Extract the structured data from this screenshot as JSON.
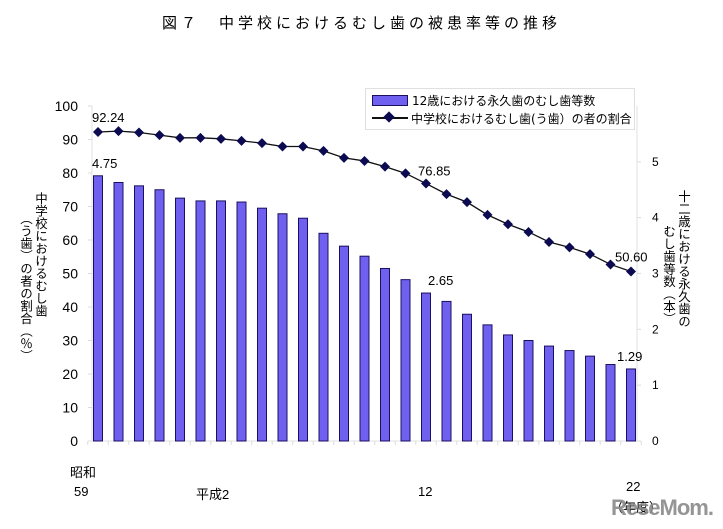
{
  "chart_data": {
    "type": "bar",
    "title": "図７　中学校におけるむし歯の被患率等の推移",
    "categories": [
      "1984",
      "1985",
      "1986",
      "1987",
      "1988",
      "1989",
      "1990",
      "1991",
      "1992",
      "1993",
      "1994",
      "1995",
      "1996",
      "1997",
      "1998",
      "1999",
      "2000",
      "2001",
      "2002",
      "2003",
      "2004",
      "2005",
      "2006",
      "2007",
      "2008",
      "2009",
      "2010"
    ],
    "series": [
      {
        "name": "12歳における永久歯のむし歯等数",
        "type": "bar",
        "axis": "right",
        "color": "#7060f0",
        "values": [
          4.75,
          4.63,
          4.57,
          4.5,
          4.35,
          4.3,
          4.3,
          4.28,
          4.17,
          4.07,
          3.99,
          3.72,
          3.49,
          3.31,
          3.09,
          2.89,
          2.65,
          2.5,
          2.27,
          2.08,
          1.9,
          1.8,
          1.7,
          1.62,
          1.52,
          1.37,
          1.29
        ]
      },
      {
        "name": "中学校におけるむし歯(う歯）の者の割合",
        "type": "line",
        "axis": "left",
        "color": "#0c0a50",
        "values": [
          92.24,
          92.5,
          92.1,
          91.3,
          90.5,
          90.5,
          90.2,
          89.6,
          88.9,
          87.9,
          87.9,
          86.6,
          84.5,
          83.6,
          81.9,
          79.9,
          76.85,
          73.7,
          71.3,
          67.5,
          64.7,
          62.4,
          59.4,
          57.8,
          55.8,
          52.7,
          50.6
        ]
      }
    ],
    "data_labels": [
      {
        "series": 0,
        "index": 0,
        "text": "4.75"
      },
      {
        "series": 0,
        "index": 16,
        "text": "2.65"
      },
      {
        "series": 0,
        "index": 26,
        "text": "1.29"
      },
      {
        "series": 1,
        "index": 0,
        "text": "92.24"
      },
      {
        "series": 1,
        "index": 16,
        "text": "76.85"
      },
      {
        "series": 1,
        "index": 26,
        "text": "50.60"
      }
    ],
    "left_axis": {
      "label": "中学校におけるむし歯（う歯）の者の割合（％）",
      "label_col1": "中学校におけるむし歯",
      "label_col2": "（う歯）の者の割合（％）",
      "ylim": [
        0,
        100
      ],
      "ticks": [
        0,
        10,
        20,
        30,
        40,
        50,
        60,
        70,
        80,
        90,
        100
      ]
    },
    "right_axis": {
      "label": "十二歳における永久歯のむし歯等数（本）",
      "label_col1": "十二歳における永久歯の",
      "label_col2": "むし歯等数（本）",
      "ylim": [
        0,
        6
      ],
      "ticks": [
        0,
        1,
        2,
        3,
        4,
        5
      ]
    },
    "x_axis": {
      "tick_labels": [
        {
          "index": 0,
          "era": "昭和",
          "text": "59"
        },
        {
          "index": 6,
          "era": "",
          "text": "平成2"
        },
        {
          "index": 16,
          "era": "",
          "text": "12"
        },
        {
          "index": 26,
          "era": "",
          "text": "22"
        }
      ],
      "unit": "（年度）"
    },
    "legend_position": "top-right",
    "grid": false
  },
  "watermark": "ReseMom."
}
